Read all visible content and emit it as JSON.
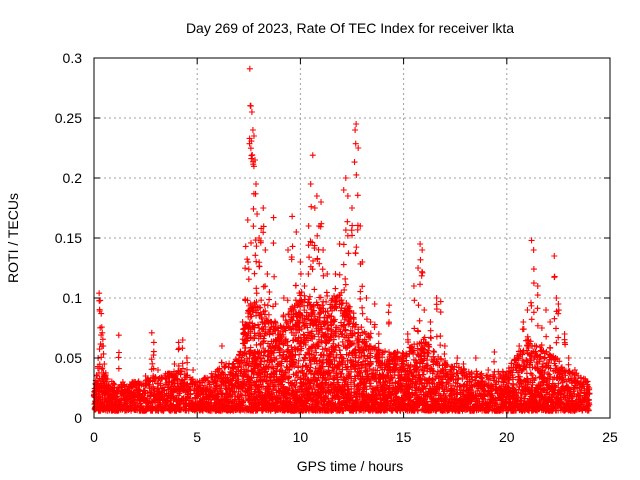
{
  "chart_data": {
    "type": "scatter",
    "title": "Day 269 of 2023, Rate Of TEC Index for receiver lkta",
    "xlabel": "GPS time / hours",
    "ylabel": "ROTI / TECUs",
    "xlim": [
      0,
      25
    ],
    "ylim": [
      0,
      0.3
    ],
    "xticks": [
      "0",
      "5",
      "10",
      "15",
      "20",
      "25"
    ],
    "yticks": [
      "0",
      "0.05",
      "0.1",
      "0.15",
      "0.2",
      "0.25",
      "0.3"
    ],
    "grid": true,
    "marker": "+",
    "color": "#ff0000",
    "series": [
      {
        "values": [
          [
            0.05,
            0.014
          ],
          [
            0.1,
            0.02
          ],
          [
            0.15,
            0.035
          ],
          [
            0.2,
            0.05
          ],
          [
            0.25,
            0.104
          ],
          [
            0.3,
            0.098
          ],
          [
            0.35,
            0.087
          ],
          [
            0.4,
            0.071
          ],
          [
            0.45,
            0.06
          ],
          [
            0.5,
            0.045
          ],
          [
            0.6,
            0.03
          ],
          [
            0.7,
            0.025
          ],
          [
            0.8,
            0.02
          ],
          [
            0.9,
            0.018
          ],
          [
            1.0,
            0.022
          ],
          [
            1.2,
            0.069
          ],
          [
            1.4,
            0.03
          ],
          [
            1.6,
            0.022
          ],
          [
            1.8,
            0.025
          ],
          [
            2.0,
            0.03
          ],
          [
            2.2,
            0.028
          ],
          [
            2.5,
            0.035
          ],
          [
            2.8,
            0.071
          ],
          [
            2.9,
            0.063
          ],
          [
            3.1,
            0.04
          ],
          [
            3.3,
            0.025
          ],
          [
            3.6,
            0.03
          ],
          [
            3.9,
            0.045
          ],
          [
            4.1,
            0.063
          ],
          [
            4.3,
            0.065
          ],
          [
            4.5,
            0.05
          ],
          [
            4.8,
            0.04
          ],
          [
            5.0,
            0.03
          ],
          [
            5.3,
            0.025
          ],
          [
            5.6,
            0.028
          ],
          [
            5.9,
            0.03
          ],
          [
            6.2,
            0.06
          ],
          [
            6.4,
            0.045
          ],
          [
            6.7,
            0.035
          ],
          [
            7.0,
            0.04
          ],
          [
            7.2,
            0.08
          ],
          [
            7.35,
            0.143
          ],
          [
            7.45,
            0.165
          ],
          [
            7.5,
            0.124
          ],
          [
            7.55,
            0.291
          ],
          [
            7.6,
            0.26
          ],
          [
            7.65,
            0.255
          ],
          [
            7.7,
            0.24
          ],
          [
            7.75,
            0.235
          ],
          [
            7.8,
            0.215
          ],
          [
            7.85,
            0.195
          ],
          [
            7.9,
            0.17
          ],
          [
            8.0,
            0.15
          ],
          [
            8.1,
            0.158
          ],
          [
            8.2,
            0.175
          ],
          [
            8.3,
            0.14
          ],
          [
            8.4,
            0.12
          ],
          [
            8.5,
            0.105
          ],
          [
            8.6,
            0.08
          ],
          [
            8.7,
            0.167
          ],
          [
            8.8,
            0.095
          ],
          [
            9.0,
            0.07
          ],
          [
            9.2,
            0.1
          ],
          [
            9.4,
            0.14
          ],
          [
            9.6,
            0.168
          ],
          [
            9.8,
            0.155
          ],
          [
            10.0,
            0.13
          ],
          [
            10.2,
            0.11
          ],
          [
            10.4,
            0.16
          ],
          [
            10.5,
            0.195
          ],
          [
            10.6,
            0.219
          ],
          [
            10.7,
            0.175
          ],
          [
            10.8,
            0.185
          ],
          [
            10.9,
            0.16
          ],
          [
            11.0,
            0.18
          ],
          [
            11.1,
            0.14
          ],
          [
            11.3,
            0.12
          ],
          [
            11.5,
            0.085
          ],
          [
            11.7,
            0.12
          ],
          [
            11.9,
            0.145
          ],
          [
            12.1,
            0.19
          ],
          [
            12.2,
            0.2
          ],
          [
            12.3,
            0.185
          ],
          [
            12.5,
            0.175
          ],
          [
            12.65,
            0.24
          ],
          [
            12.7,
            0.245
          ],
          [
            12.8,
            0.225
          ],
          [
            12.9,
            0.16
          ],
          [
            13.0,
            0.13
          ],
          [
            13.2,
            0.1
          ],
          [
            13.4,
            0.08
          ],
          [
            13.6,
            0.095
          ],
          [
            13.8,
            0.07
          ],
          [
            14.0,
            0.055
          ],
          [
            14.3,
            0.094
          ],
          [
            14.6,
            0.05
          ],
          [
            14.9,
            0.045
          ],
          [
            15.2,
            0.07
          ],
          [
            15.5,
            0.11
          ],
          [
            15.7,
            0.125
          ],
          [
            15.8,
            0.145
          ],
          [
            15.9,
            0.14
          ],
          [
            16.0,
            0.09
          ],
          [
            16.3,
            0.08
          ],
          [
            16.6,
            0.1
          ],
          [
            16.8,
            0.097
          ],
          [
            17.0,
            0.06
          ],
          [
            17.3,
            0.04
          ],
          [
            17.6,
            0.05
          ],
          [
            17.9,
            0.045
          ],
          [
            18.2,
            0.035
          ],
          [
            18.5,
            0.05
          ],
          [
            18.8,
            0.03
          ],
          [
            19.1,
            0.04
          ],
          [
            19.4,
            0.055
          ],
          [
            19.7,
            0.035
          ],
          [
            20.0,
            0.03
          ],
          [
            20.3,
            0.04
          ],
          [
            20.6,
            0.06
          ],
          [
            20.8,
            0.08
          ],
          [
            21.0,
            0.09
          ],
          [
            21.2,
            0.148
          ],
          [
            21.3,
            0.14
          ],
          [
            21.5,
            0.11
          ],
          [
            21.7,
            0.075
          ],
          [
            21.9,
            0.09
          ],
          [
            22.1,
            0.08
          ],
          [
            22.3,
            0.135
          ],
          [
            22.4,
            0.1
          ],
          [
            22.5,
            0.095
          ],
          [
            22.8,
            0.07
          ],
          [
            23.0,
            0.05
          ],
          [
            23.3,
            0.04
          ],
          [
            23.6,
            0.03
          ],
          [
            23.9,
            0.028
          ],
          [
            24.0,
            0.02
          ]
        ]
      }
    ],
    "envelope": [
      [
        0,
        0.025
      ],
      [
        0.3,
        0.04
      ],
      [
        1,
        0.022
      ],
      [
        2,
        0.025
      ],
      [
        3,
        0.03
      ],
      [
        4,
        0.035
      ],
      [
        5,
        0.025
      ],
      [
        6,
        0.035
      ],
      [
        7,
        0.045
      ],
      [
        7.5,
        0.09
      ],
      [
        8,
        0.09
      ],
      [
        9,
        0.07
      ],
      [
        10,
        0.1
      ],
      [
        11,
        0.09
      ],
      [
        12,
        0.1
      ],
      [
        13,
        0.07
      ],
      [
        14,
        0.05
      ],
      [
        15,
        0.05
      ],
      [
        16,
        0.06
      ],
      [
        17,
        0.04
      ],
      [
        18,
        0.035
      ],
      [
        19,
        0.03
      ],
      [
        20,
        0.035
      ],
      [
        21,
        0.06
      ],
      [
        22,
        0.05
      ],
      [
        23,
        0.035
      ],
      [
        24,
        0.025
      ]
    ]
  }
}
